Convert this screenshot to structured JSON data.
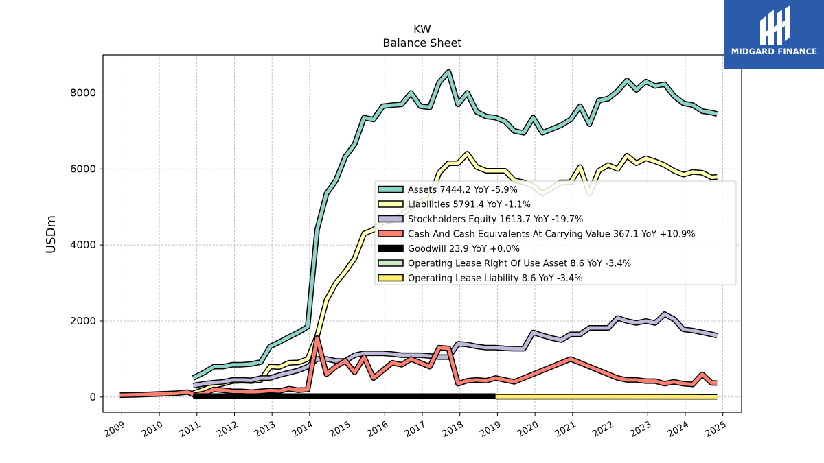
{
  "brand": {
    "name": "MIDGARD FINANCE"
  },
  "chart_data": {
    "type": "line",
    "title": "KW",
    "subtitle": "Balance  Sheet",
    "ylabel": "USDm",
    "xlabel": "",
    "xlim": [
      2008.5,
      2025.5
    ],
    "ylim": [
      -400,
      9000
    ],
    "x_ticks": [
      "2009",
      "2010",
      "2011",
      "2012",
      "2013",
      "2014",
      "2015",
      "2016",
      "2017",
      "2018",
      "2019",
      "2020",
      "2021",
      "2022",
      "2023",
      "2024",
      "2025"
    ],
    "y_ticks": [
      0,
      2000,
      4000,
      6000,
      8000
    ],
    "grid": true,
    "legend_position": "center-right",
    "series": [
      {
        "name": "Assets  7444.2 YoY -5.9%",
        "color": "#8dd3c7",
        "x": [
          2010.9,
          2011.2,
          2011.45,
          2011.7,
          2011.95,
          2012.2,
          2012.45,
          2012.7,
          2012.95,
          2013.2,
          2013.45,
          2013.7,
          2013.95,
          2014.2,
          2014.45,
          2014.7,
          2014.95,
          2015.2,
          2015.45,
          2015.7,
          2015.95,
          2016.2,
          2016.45,
          2016.7,
          2016.95,
          2017.2,
          2017.45,
          2017.7,
          2017.95,
          2018.2,
          2018.45,
          2018.7,
          2018.95,
          2019.2,
          2019.45,
          2019.7,
          2019.95,
          2020.2,
          2020.45,
          2020.7,
          2020.95,
          2021.2,
          2021.45,
          2021.7,
          2021.95,
          2022.2,
          2022.45,
          2022.7,
          2022.95,
          2023.2,
          2023.45,
          2023.7,
          2023.95,
          2024.2,
          2024.45,
          2024.7,
          2024.85
        ],
        "y": [
          500,
          650,
          800,
          800,
          850,
          850,
          870,
          920,
          1330,
          1450,
          1580,
          1700,
          1850,
          4400,
          5350,
          5700,
          6320,
          6650,
          7350,
          7300,
          7650,
          7680,
          7700,
          8000,
          7650,
          7620,
          8280,
          8550,
          7700,
          8000,
          7500,
          7380,
          7350,
          7250,
          7000,
          6950,
          7350,
          6950,
          7050,
          7150,
          7300,
          7650,
          7180,
          7800,
          7850,
          8050,
          8330,
          8080,
          8300,
          8180,
          8230,
          7920,
          7730,
          7680,
          7520,
          7480,
          7444
        ]
      },
      {
        "name": "Liabilities  5791.4 YoY -1.1%",
        "color": "#ffffb3",
        "x": [
          2010.9,
          2011.2,
          2011.45,
          2011.7,
          2011.95,
          2012.2,
          2012.45,
          2012.7,
          2012.95,
          2013.2,
          2013.45,
          2013.7,
          2013.95,
          2014.2,
          2014.45,
          2014.7,
          2014.95,
          2015.2,
          2015.45,
          2015.7,
          2015.95,
          2016.2,
          2016.45,
          2016.7,
          2016.95,
          2017.2,
          2017.45,
          2017.7,
          2017.95,
          2018.2,
          2018.45,
          2018.7,
          2018.95,
          2019.2,
          2019.45,
          2019.7,
          2019.95,
          2020.2,
          2020.45,
          2020.7,
          2020.95,
          2021.2,
          2021.45,
          2021.7,
          2021.95,
          2022.2,
          2022.45,
          2022.7,
          2022.95,
          2023.2,
          2023.45,
          2023.7,
          2023.95,
          2024.2,
          2024.45,
          2024.7,
          2024.85
        ],
        "y": [
          100,
          200,
          300,
          350,
          420,
          430,
          420,
          450,
          800,
          790,
          900,
          910,
          1000,
          1600,
          2550,
          3000,
          3300,
          3650,
          4300,
          4400,
          4600,
          4650,
          4800,
          5000,
          5150,
          5200,
          5900,
          6150,
          6150,
          6400,
          6050,
          5950,
          5950,
          5950,
          5700,
          5650,
          5550,
          5350,
          5500,
          5650,
          5650,
          6050,
          5350,
          5950,
          6100,
          6000,
          6350,
          6150,
          6280,
          6200,
          6100,
          5950,
          5850,
          5920,
          5900,
          5780,
          5791
        ]
      },
      {
        "name": "Stockholders Equity  1613.7 YoY -19.7%",
        "color": "#bebada",
        "x": [
          2010.9,
          2011.2,
          2011.45,
          2011.7,
          2011.95,
          2012.2,
          2012.45,
          2012.7,
          2012.95,
          2013.2,
          2013.45,
          2013.7,
          2013.95,
          2014.2,
          2014.45,
          2014.7,
          2014.95,
          2015.2,
          2015.45,
          2015.7,
          2015.95,
          2016.2,
          2016.45,
          2016.7,
          2016.95,
          2017.2,
          2017.45,
          2017.7,
          2017.95,
          2018.2,
          2018.45,
          2018.7,
          2018.95,
          2019.2,
          2019.45,
          2019.7,
          2019.95,
          2020.2,
          2020.45,
          2020.7,
          2020.95,
          2021.2,
          2021.45,
          2021.7,
          2021.95,
          2022.2,
          2022.45,
          2022.7,
          2022.95,
          2023.2,
          2023.45,
          2023.7,
          2023.95,
          2024.2,
          2024.45,
          2024.7,
          2024.85
        ],
        "y": [
          300,
          350,
          380,
          400,
          450,
          450,
          440,
          500,
          500,
          580,
          640,
          700,
          800,
          1000,
          1000,
          950,
          950,
          1100,
          1150,
          1150,
          1150,
          1130,
          1100,
          1100,
          1100,
          1080,
          1050,
          1050,
          1400,
          1380,
          1330,
          1300,
          1300,
          1280,
          1270,
          1270,
          1700,
          1620,
          1550,
          1500,
          1650,
          1650,
          1820,
          1820,
          1820,
          2080,
          2000,
          1950,
          2000,
          1950,
          2180,
          2050,
          1780,
          1750,
          1700,
          1650,
          1614
        ]
      },
      {
        "name": "Cash And Cash Equivalents At Carrying Value  367.1 YoY +10.9%",
        "color": "#fb8072",
        "x": [
          2008.95,
          2009.45,
          2009.95,
          2010.45,
          2010.75,
          2010.95,
          2011.2,
          2011.45,
          2011.7,
          2011.95,
          2012.2,
          2012.45,
          2012.7,
          2012.95,
          2013.2,
          2013.45,
          2013.7,
          2013.95,
          2014.2,
          2014.45,
          2014.7,
          2014.95,
          2015.2,
          2015.45,
          2015.7,
          2015.95,
          2016.2,
          2016.45,
          2016.7,
          2016.95,
          2017.2,
          2017.45,
          2017.7,
          2017.95,
          2018.2,
          2018.45,
          2018.7,
          2018.95,
          2019.2,
          2019.45,
          2019.7,
          2019.95,
          2020.2,
          2020.45,
          2020.7,
          2020.95,
          2021.2,
          2021.45,
          2021.7,
          2021.95,
          2022.2,
          2022.45,
          2022.7,
          2022.95,
          2023.2,
          2023.45,
          2023.7,
          2023.95,
          2024.2,
          2024.45,
          2024.7,
          2024.85
        ],
        "y": [
          50,
          60,
          80,
          100,
          130,
          50,
          100,
          200,
          180,
          150,
          150,
          130,
          150,
          170,
          160,
          220,
          180,
          200,
          1550,
          600,
          800,
          950,
          650,
          1050,
          500,
          700,
          900,
          850,
          1000,
          900,
          800,
          1300,
          1280,
          350,
          430,
          450,
          430,
          500,
          450,
          400,
          500,
          600,
          700,
          800,
          900,
          1000,
          900,
          800,
          700,
          600,
          500,
          450,
          450,
          420,
          420,
          350,
          400,
          350,
          330,
          600,
          370,
          367
        ]
      },
      {
        "name": "Goodwill  23.9 YoY +0.0%",
        "color": "#000000",
        "x": [
          2010.9,
          2018.95
        ],
        "y": [
          24,
          24
        ]
      },
      {
        "name": "Operating Lease Right Of Use Asset  8.6 YoY -3.4%",
        "color": "#ccebc5",
        "x": [
          2018.95,
          2024.85
        ],
        "y": [
          12,
          8.6
        ]
      },
      {
        "name": "Operating Lease Liability  8.6 YoY -3.4%",
        "color": "#ffed6f",
        "x": [
          2018.95,
          2024.85
        ],
        "y": [
          12,
          8.6
        ]
      }
    ]
  }
}
